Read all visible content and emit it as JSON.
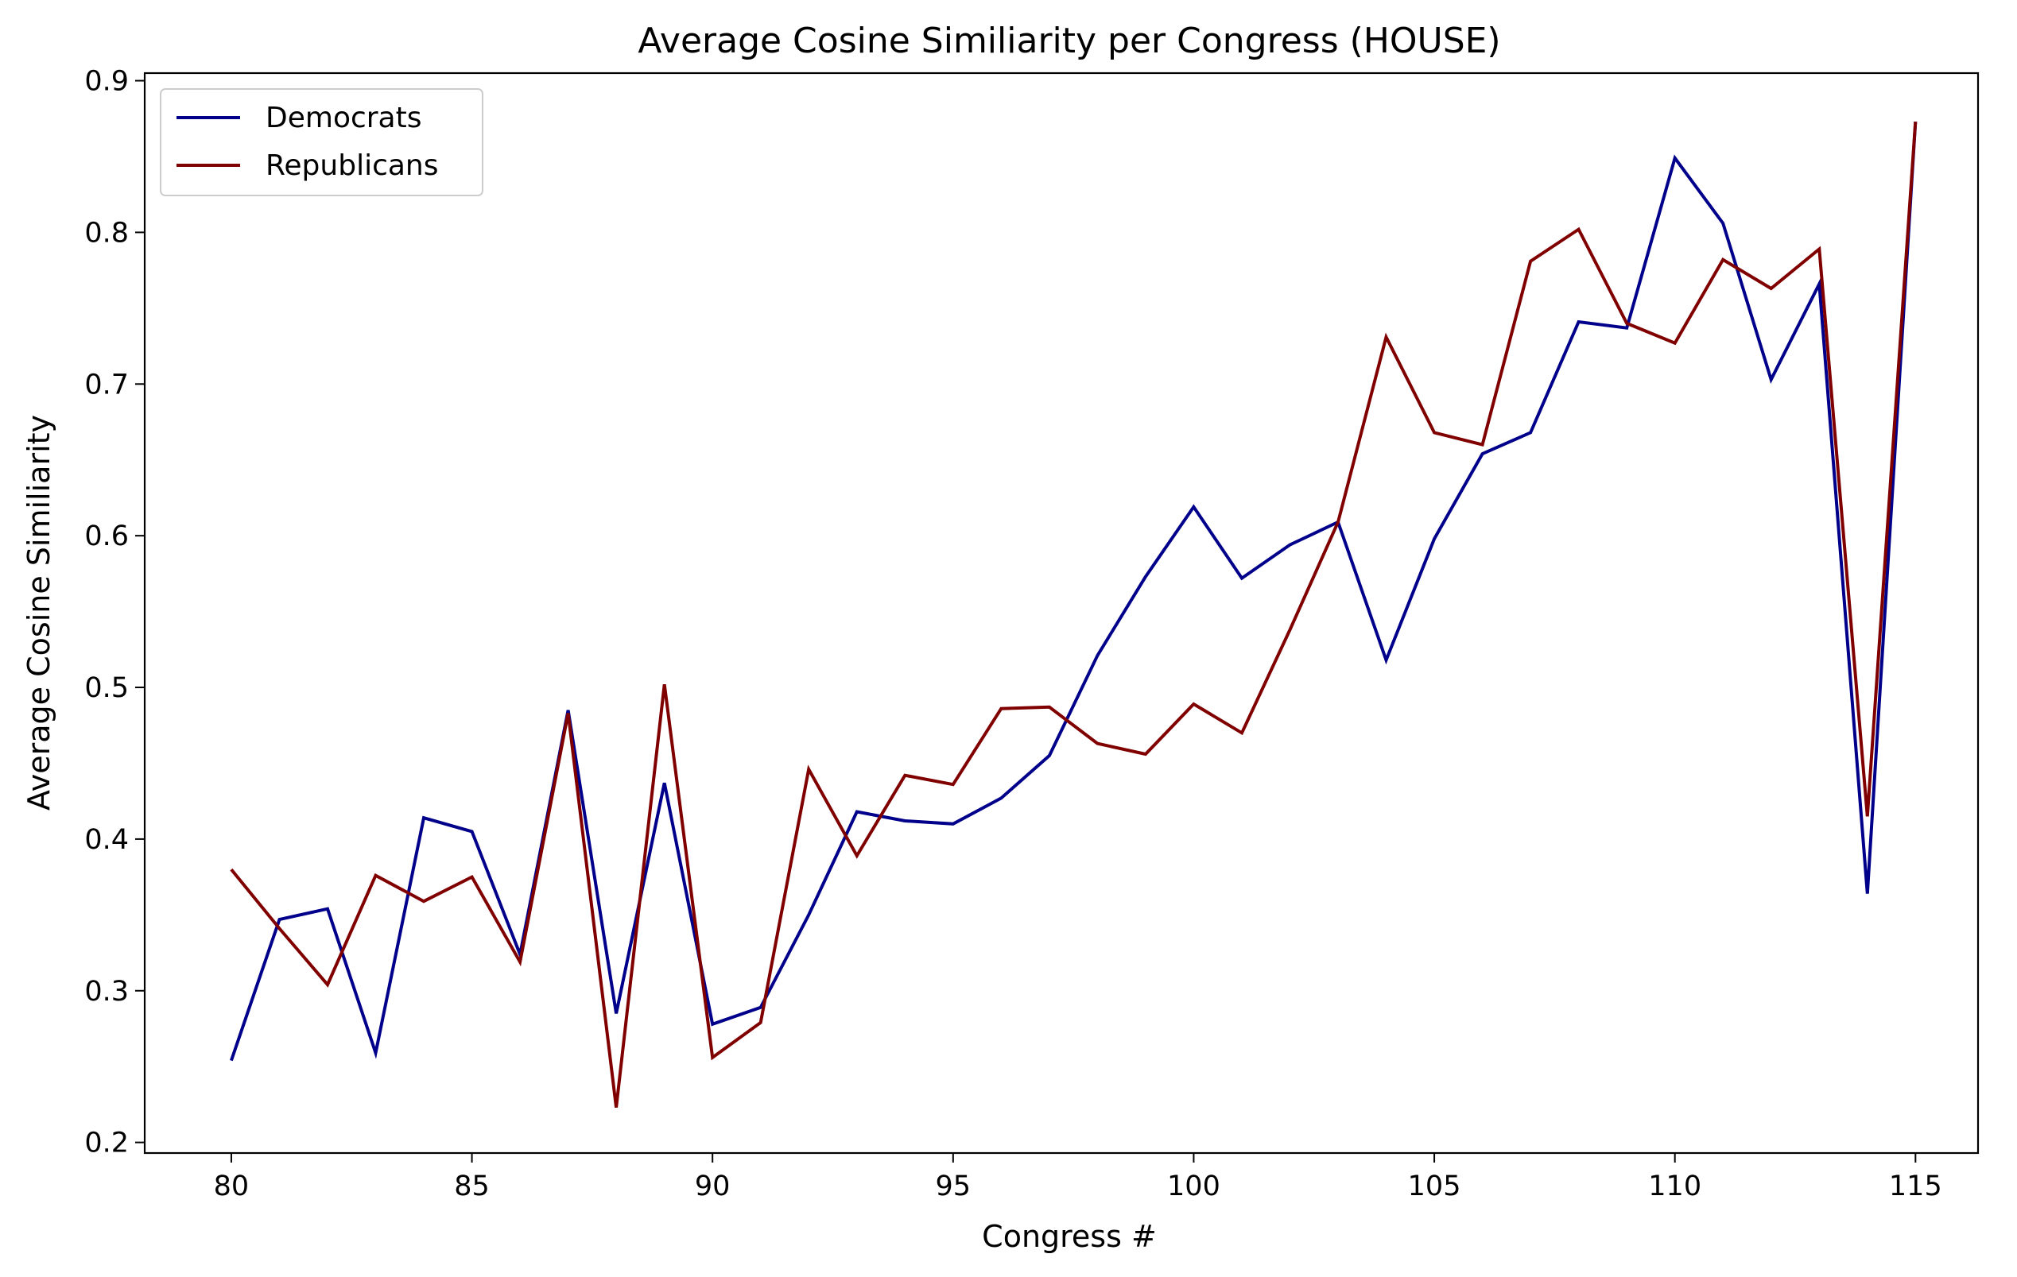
{
  "chart_data": {
    "type": "line",
    "title": "Average Cosine Similiarity per Congress (HOUSE)",
    "xlabel": "Congress #",
    "ylabel": "Average Cosine Similiarity",
    "xlim": [
      78.2,
      116.3
    ],
    "ylim": [
      0.193,
      0.905
    ],
    "xticks": [
      80,
      85,
      90,
      95,
      100,
      105,
      110,
      115
    ],
    "yticks": [
      0.2,
      0.3,
      0.4,
      0.5,
      0.6,
      0.7,
      0.8,
      0.9
    ],
    "grid": false,
    "legend_position": "top-left",
    "x": [
      80,
      81,
      82,
      83,
      84,
      85,
      86,
      87,
      88,
      89,
      90,
      91,
      92,
      93,
      94,
      95,
      96,
      97,
      98,
      99,
      100,
      101,
      102,
      103,
      104,
      105,
      106,
      107,
      108,
      109,
      110,
      111,
      112,
      113,
      114,
      115
    ],
    "series": [
      {
        "name": "Democrats",
        "color": "#00008b",
        "values": [
          0.254,
          0.347,
          0.354,
          0.259,
          0.414,
          0.405,
          0.324,
          0.485,
          0.285,
          0.437,
          0.278,
          0.289,
          0.35,
          0.418,
          0.412,
          0.41,
          0.427,
          0.455,
          0.521,
          0.573,
          0.619,
          0.572,
          0.594,
          0.609,
          0.518,
          0.598,
          0.654,
          0.668,
          0.741,
          0.737,
          0.849,
          0.806,
          0.703,
          0.766,
          0.364,
          0.873
        ]
      },
      {
        "name": "Republicans",
        "color": "#800000",
        "values": [
          0.38,
          0.341,
          0.304,
          0.376,
          0.359,
          0.375,
          0.319,
          0.483,
          0.223,
          0.502,
          0.256,
          0.279,
          0.446,
          0.389,
          0.442,
          0.436,
          0.486,
          0.487,
          0.463,
          0.456,
          0.489,
          0.47,
          0.538,
          0.609,
          0.731,
          0.668,
          0.66,
          0.781,
          0.802,
          0.74,
          0.727,
          0.782,
          0.763,
          0.789,
          0.415,
          0.873
        ]
      }
    ]
  }
}
